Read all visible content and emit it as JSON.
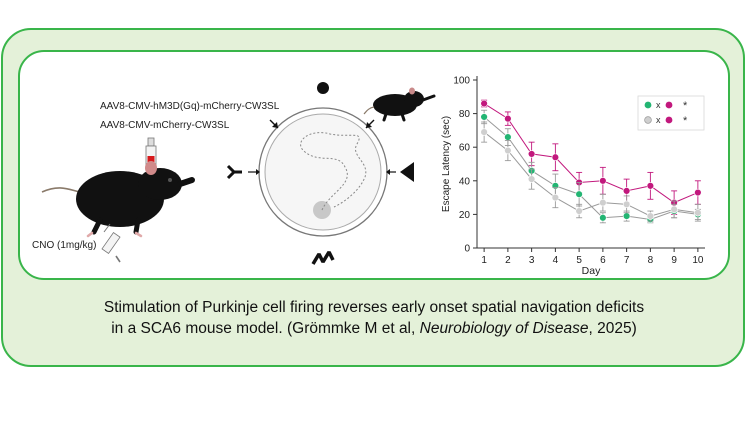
{
  "labels": {
    "construct_gq": "AAV8-CMV-hM3D(Gq)-mCherry-CW3SL",
    "construct_control": "AAV8-CMV-mCherry-CW3SL",
    "cno": "CNO (1mg/kg)"
  },
  "legend": {
    "row1_mark": "x",
    "row1_star": "*",
    "row2_mark": "x",
    "row2_star": "*"
  },
  "chart_data": {
    "type": "line",
    "title": "",
    "xlabel": "Day",
    "ylabel": "Escape Latency (sec)",
    "x": [
      1,
      2,
      3,
      4,
      5,
      6,
      7,
      8,
      9,
      10
    ],
    "xlim": [
      0.7,
      10.3
    ],
    "ylim": [
      0,
      100
    ],
    "yticks": [
      0,
      20,
      40,
      60,
      80,
      100
    ],
    "series": [
      {
        "name": "magenta",
        "color": "#c2187d",
        "fill": "#c2187d",
        "values": [
          86,
          77,
          56,
          54,
          39,
          40,
          34,
          37,
          27,
          33
        ],
        "errors": [
          2,
          4,
          7,
          8,
          6,
          8,
          7,
          8,
          7,
          7
        ]
      },
      {
        "name": "green",
        "color": "#9a9a9a",
        "fill": "#23b573",
        "values": [
          78,
          66,
          46,
          37,
          32,
          18,
          19,
          17,
          22,
          20
        ],
        "errors": [
          4,
          5,
          5,
          7,
          7,
          3,
          3,
          2,
          4,
          3
        ]
      },
      {
        "name": "gray",
        "color": "#9a9a9a",
        "fill": "#cfcfcf",
        "values": [
          69,
          58,
          41,
          30,
          22,
          27,
          26,
          19,
          23,
          21
        ],
        "errors": [
          6,
          6,
          6,
          6,
          4,
          5,
          5,
          3,
          5,
          5
        ]
      }
    ]
  },
  "caption": {
    "line1": "Stimulation of Purkinje cell firing reverses early onset spatial navigation deficits",
    "line2_start": "in a SCA6 mouse model. (Grömmke M et al, ",
    "journal": "Neurobiology of  Disease",
    "line2_end": ", 2025)"
  }
}
